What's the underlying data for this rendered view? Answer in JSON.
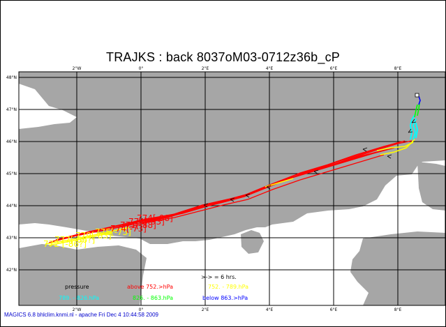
{
  "title": "TRAJKS : back 8037oM03-0712z36b_cP",
  "footer": "MAGICS 6.8 bhlclim.knmi.nl - apache Fri Dec  4 10:44:58 2009",
  "lon_labels": [
    "2°W",
    "0°",
    "2°E",
    "4°E",
    "6°E",
    "8°E"
  ],
  "lat_labels": [
    "48°N",
    "47°N",
    "46°N",
    "45°N",
    "44°N",
    "43°N",
    "42°N"
  ],
  "scale_note": ">-> = 6 hrs.",
  "legend": {
    "header": "pressure",
    "above": "above  752.>hPa",
    "mid_low": "752.  -  789.hPa",
    "mid_a": "789.  -  826.hPa",
    "mid_b": "826.  -  863.hPa",
    "below": "below  863.>hPa"
  },
  "trajectory_labels": [
    {
      "text": "772 [-86?]",
      "color": "#ffff00"
    },
    {
      "text": "777[-86?]",
      "color": "#ffff00"
    },
    {
      "text": "779[-83]",
      "color": "#ffff00"
    },
    {
      "text": "775[-75]",
      "color": "#ffff00"
    },
    {
      "text": "774[-73]",
      "color": "#ff0000"
    },
    {
      "text": "771[-88]",
      "color": "#ff0000"
    },
    {
      "text": "774[-93]",
      "color": "#ff0000"
    },
    {
      "text": "774[-98]",
      "color": "#ff0000"
    }
  ],
  "colors": {
    "land": "#a6a6a6",
    "sea": "#ffffff",
    "grid": "#000000",
    "above": "#ff0000",
    "mid_low": "#ffff00",
    "mid_a": "#00ffff",
    "mid_b": "#00ff00",
    "below": "#0000ff"
  }
}
